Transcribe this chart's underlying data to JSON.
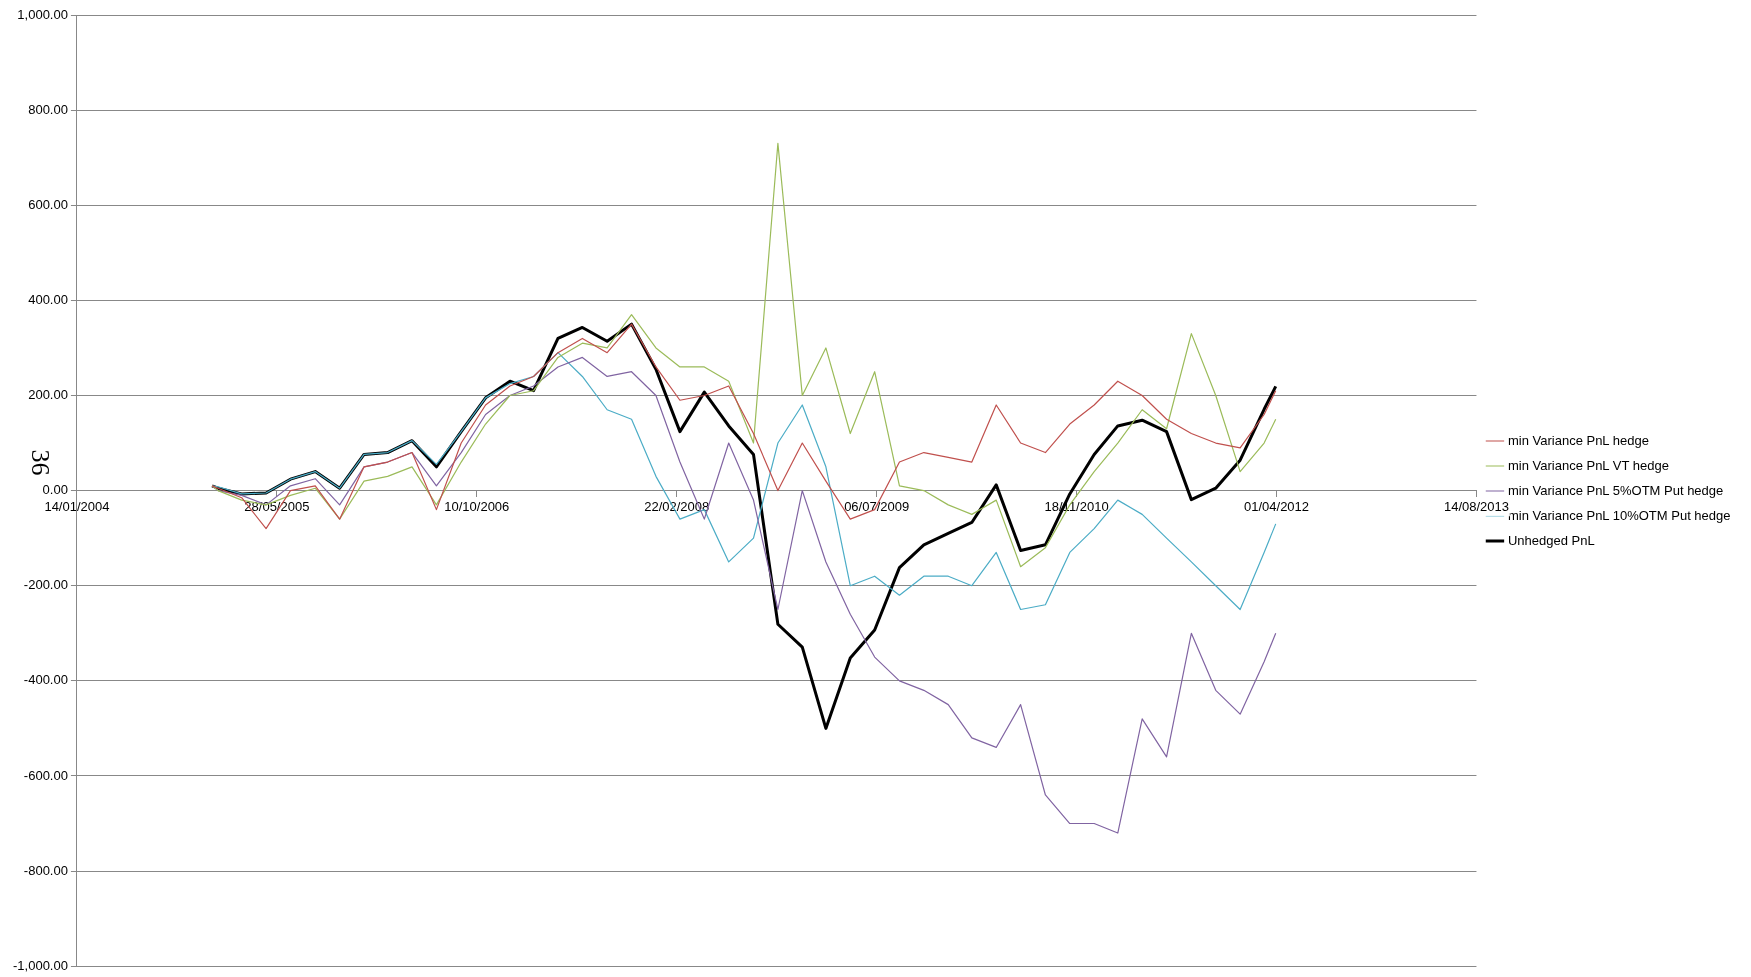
{
  "chart_data": {
    "type": "line",
    "x": [
      "2004-12-17",
      "2005-01-01",
      "2005-03-01",
      "2005-05-01",
      "2005-07-01",
      "2005-09-01",
      "2005-11-01",
      "2006-01-01",
      "2006-03-01",
      "2006-05-01",
      "2006-07-01",
      "2006-09-01",
      "2006-11-01",
      "2007-01-01",
      "2007-03-01",
      "2007-05-01",
      "2007-07-01",
      "2007-09-01",
      "2007-11-01",
      "2008-01-01",
      "2008-03-01",
      "2008-05-01",
      "2008-07-01",
      "2008-09-01",
      "2008-11-01",
      "2009-01-01",
      "2009-03-01",
      "2009-05-01",
      "2009-07-01",
      "2009-09-01",
      "2009-11-01",
      "2010-01-01",
      "2010-03-01",
      "2010-05-01",
      "2010-07-01",
      "2010-09-01",
      "2010-11-01",
      "2011-01-01",
      "2011-03-01",
      "2011-05-01",
      "2011-07-01",
      "2011-09-01",
      "2011-11-01",
      "2012-01-01",
      "2012-03-01",
      "2012-03-30"
    ],
    "series": [
      {
        "name": "Unhedged PnL",
        "color": "#000000",
        "values": [
          10,
          5,
          -7,
          -5,
          24,
          40,
          5,
          76,
          80,
          105,
          50,
          124,
          195,
          230,
          210,
          320,
          343,
          314,
          350,
          255,
          124,
          207,
          136,
          76,
          -281,
          -329,
          -500,
          -352,
          -293,
          -162,
          -114,
          -90,
          -67,
          12,
          -126,
          -114,
          -7,
          76,
          136,
          148,
          124,
          -19,
          5,
          64,
          171,
          219
        ]
      },
      {
        "name": "min Variance PnL hedge",
        "color": "#c0504d",
        "values": [
          10,
          5,
          -15,
          -80,
          0,
          10,
          -60,
          50,
          60,
          80,
          -40,
          100,
          180,
          220,
          240,
          290,
          320,
          290,
          350,
          260,
          190,
          200,
          220,
          120,
          0,
          100,
          20,
          -60,
          -40,
          60,
          80,
          70,
          60,
          180,
          100,
          80,
          140,
          180,
          230,
          200,
          150,
          120,
          100,
          90,
          160,
          210
        ]
      },
      {
        "name": "min Variance PnL VT hedge",
        "color": "#9bbb59",
        "values": [
          10,
          0,
          -20,
          -30,
          -10,
          5,
          -60,
          20,
          30,
          50,
          -30,
          60,
          140,
          200,
          210,
          280,
          310,
          300,
          370,
          300,
          260,
          260,
          230,
          100,
          730,
          200,
          300,
          120,
          250,
          10,
          0,
          -30,
          -50,
          -20,
          -160,
          -120,
          -30,
          40,
          100,
          170,
          130,
          330,
          200,
          40,
          100,
          150
        ]
      },
      {
        "name": "min Variance PnL 5%OTM Put hedge",
        "color": "#8064a2",
        "values": [
          10,
          0,
          -10,
          -30,
          10,
          25,
          -30,
          50,
          60,
          80,
          10,
          80,
          160,
          200,
          220,
          260,
          280,
          240,
          250,
          200,
          60,
          -60,
          100,
          -20,
          -250,
          0,
          -150,
          -260,
          -350,
          -400,
          -420,
          -450,
          -520,
          -540,
          -450,
          -640,
          -700,
          -700,
          -720,
          -480,
          -560,
          -300,
          -420,
          -470,
          -360,
          -300
        ]
      },
      {
        "name": "min Variance PnL 10%OTM Put hedge",
        "color": "#4bacc6",
        "values": [
          10,
          8,
          -7,
          -5,
          24,
          40,
          5,
          76,
          80,
          105,
          55,
          124,
          195,
          225,
          240,
          290,
          240,
          170,
          150,
          30,
          -60,
          -40,
          -150,
          -100,
          100,
          180,
          50,
          -200,
          -180,
          -220,
          -180,
          -180,
          -200,
          -130,
          -250,
          -240,
          -130,
          -80,
          -20,
          -50,
          -100,
          -150,
          -200,
          -250,
          -130,
          -70
        ]
      }
    ],
    "xlim": [
      "2004-01-14",
      "2013-08-14"
    ],
    "xticks": [
      {
        "value": "2004-01-14",
        "label": "14/01/2004"
      },
      {
        "value": "2005-05-28",
        "label": "28/05/2005"
      },
      {
        "value": "2006-10-10",
        "label": "10/10/2006"
      },
      {
        "value": "2008-02-22",
        "label": "22/02/2008"
      },
      {
        "value": "2009-07-06",
        "label": "06/07/2009"
      },
      {
        "value": "2010-11-18",
        "label": "18/11/2010"
      },
      {
        "value": "2012-04-01",
        "label": "01/04/2012"
      },
      {
        "value": "2013-08-14",
        "label": "14/08/2013"
      }
    ],
    "ylim": [
      -1000,
      1000
    ],
    "yticks": [
      {
        "value": -1000,
        "label": "-1,000.00"
      },
      {
        "value": -800,
        "label": "-800.00"
      },
      {
        "value": -600,
        "label": "-600.00"
      },
      {
        "value": -400,
        "label": "-400.00"
      },
      {
        "value": -200,
        "label": "-200.00"
      },
      {
        "value": 0,
        "label": "0.00"
      },
      {
        "value": 200,
        "label": "200.00"
      },
      {
        "value": 400,
        "label": "400.00"
      },
      {
        "value": 600,
        "label": "600.00"
      },
      {
        "value": 800,
        "label": "800.00"
      },
      {
        "value": 1000,
        "label": "1,000.00"
      }
    ],
    "grid": "y",
    "legend": "right",
    "marker": "none",
    "line_style": "solid",
    "annotations": [
      "36"
    ]
  }
}
